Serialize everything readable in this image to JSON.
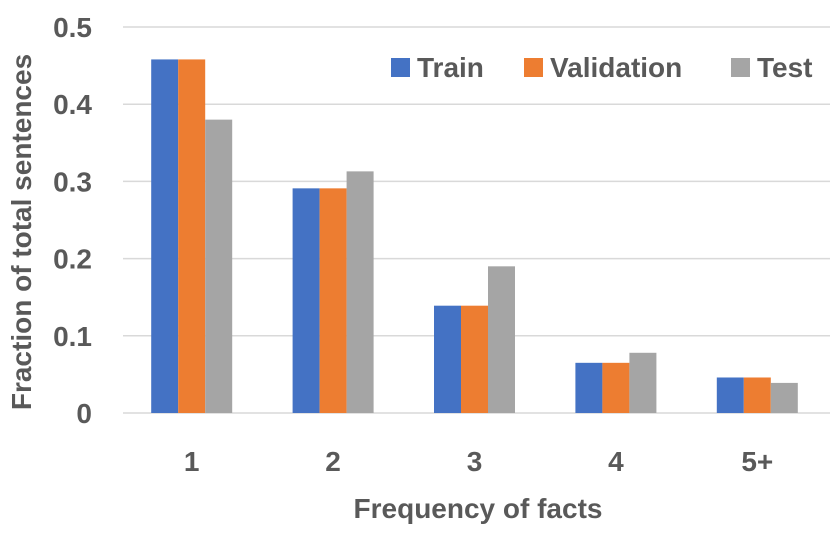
{
  "chart_data": {
    "type": "bar",
    "title": "",
    "xlabel": "Frequency of facts",
    "ylabel": "Fraction of total sentences",
    "categories": [
      "1",
      "2",
      "3",
      "4",
      "5+"
    ],
    "ylim": [
      0,
      0.5
    ],
    "yticks": [
      0,
      0.1,
      0.2,
      0.3,
      0.4,
      0.5
    ],
    "ytick_labels": [
      "0",
      "0.1",
      "0.2",
      "0.3",
      "0.4",
      "0.5"
    ],
    "grid": true,
    "legend_position": "top-right",
    "series": [
      {
        "name": "Train",
        "color": "#4472C4",
        "values": [
          0.458,
          0.291,
          0.139,
          0.065,
          0.046
        ]
      },
      {
        "name": "Validation",
        "color": "#ED7D31",
        "values": [
          0.458,
          0.291,
          0.139,
          0.065,
          0.046
        ]
      },
      {
        "name": "Test",
        "color": "#A5A5A5",
        "values": [
          0.38,
          0.313,
          0.19,
          0.078,
          0.039
        ]
      }
    ]
  }
}
